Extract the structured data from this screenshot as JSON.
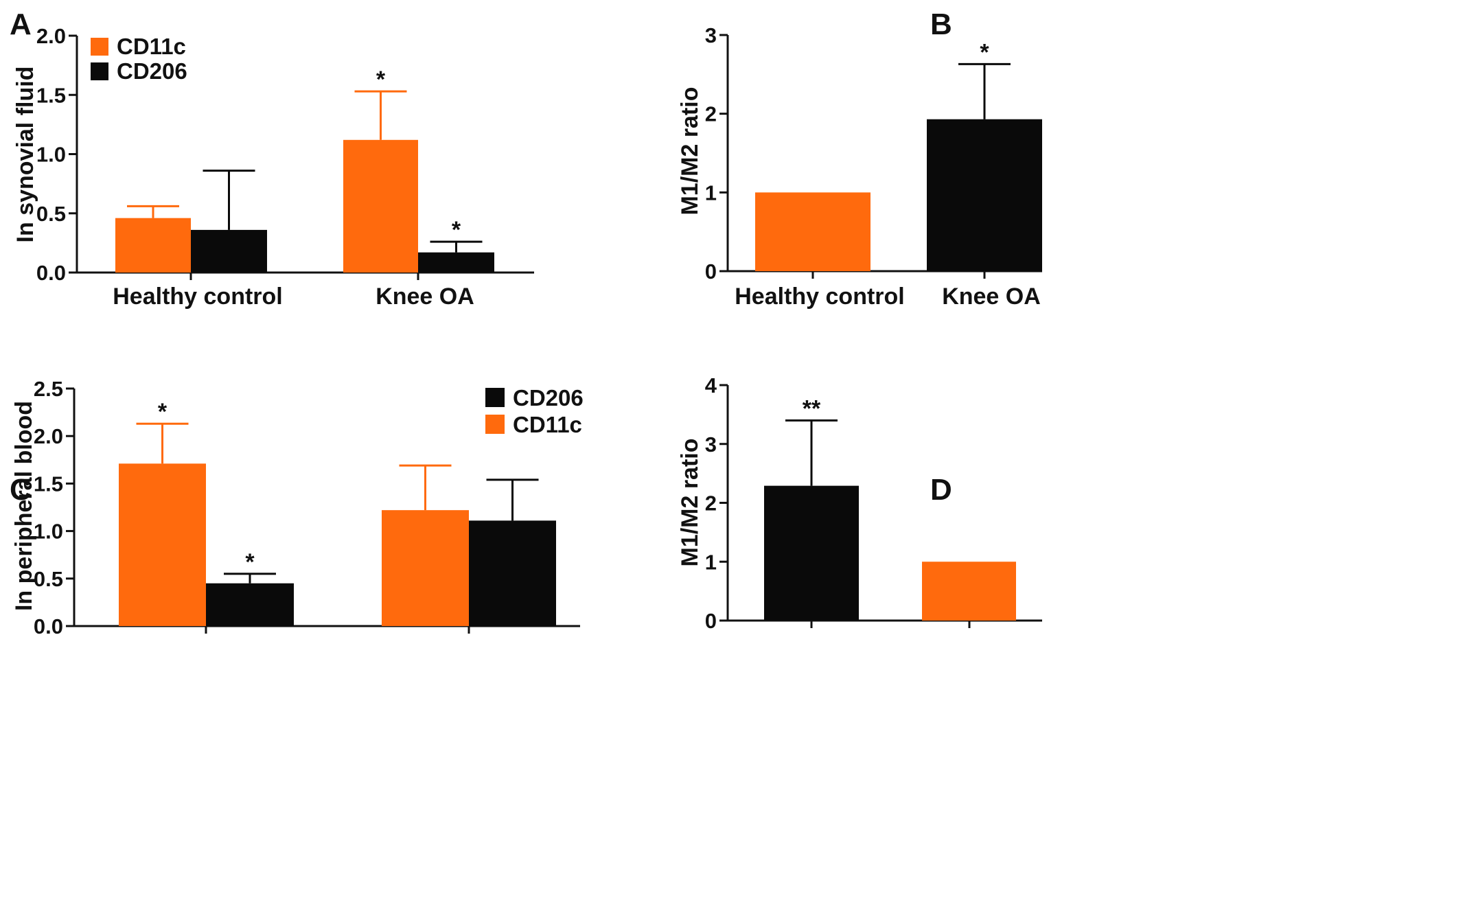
{
  "colors": {
    "orange": "#FF6A0D",
    "black": "#0A0A0A",
    "axis": "#111111"
  },
  "panel_letters": {
    "a": "A",
    "b": "B",
    "c": "C",
    "d": "D"
  },
  "chart_data": [
    {
      "id": "A",
      "type": "bar",
      "ylabel": "In synovial fluid",
      "xlabel": "",
      "ylim": [
        0,
        2.0
      ],
      "yticks": [
        "0.0",
        "0.5",
        "1.0",
        "1.5",
        "2.0"
      ],
      "categories": [
        "Healthy control",
        "Knee OA"
      ],
      "series": [
        {
          "name": "CD11c",
          "color": "#FF6A0D",
          "values": [
            0.46,
            1.12
          ],
          "errors": [
            0.1,
            0.41
          ],
          "significance": [
            "",
            "*"
          ]
        },
        {
          "name": "CD206",
          "color": "#0A0A0A",
          "values": [
            0.36,
            0.17
          ],
          "errors": [
            0.5,
            0.09
          ],
          "significance": [
            "",
            "*"
          ]
        }
      ],
      "legend": [
        {
          "label": "CD11c",
          "color": "#FF6A0D"
        },
        {
          "label": "CD206",
          "color": "#0A0A0A"
        }
      ],
      "legend_position": "top-left"
    },
    {
      "id": "B",
      "type": "bar",
      "ylabel": "M1/M2 ratio",
      "xlabel": "",
      "ylim": [
        0,
        3
      ],
      "yticks": [
        "0",
        "1",
        "2",
        "3"
      ],
      "categories": [
        "Healthy control",
        "Knee OA"
      ],
      "series": [
        {
          "name": "M1/M2 ratio",
          "colors": [
            "#FF6A0D",
            "#0A0A0A"
          ],
          "values": [
            1.0,
            1.93
          ],
          "errors": [
            0,
            0.7
          ],
          "significance": [
            "",
            "*"
          ]
        }
      ]
    },
    {
      "id": "C",
      "type": "bar",
      "ylabel": "In peripheral blood",
      "xlabel": "",
      "ylim": [
        0,
        2.5
      ],
      "yticks": [
        "0.0",
        "0.5",
        "1.0",
        "1.5",
        "2.0",
        "2.5"
      ],
      "categories": [
        "",
        ""
      ],
      "series": [
        {
          "name": "CD11c",
          "color": "#FF6A0D",
          "values": [
            1.71,
            1.22
          ],
          "errors": [
            0.42,
            0.47
          ],
          "significance": [
            "*",
            ""
          ]
        },
        {
          "name": "CD206",
          "color": "#0A0A0A",
          "values": [
            0.45,
            1.11
          ],
          "errors": [
            0.1,
            0.43
          ],
          "significance": [
            "*",
            ""
          ]
        }
      ],
      "legend": [
        {
          "label": "CD206",
          "color": "#0A0A0A"
        },
        {
          "label": "CD11c",
          "color": "#FF6A0D"
        }
      ],
      "legend_position": "top-right"
    },
    {
      "id": "D",
      "type": "bar",
      "ylabel": "M1/M2 ratio",
      "xlabel": "",
      "ylim": [
        0,
        4
      ],
      "yticks": [
        "0",
        "1",
        "2",
        "3",
        "4"
      ],
      "categories": [
        "",
        ""
      ],
      "series": [
        {
          "name": "M1/M2 ratio",
          "colors": [
            "#0A0A0A",
            "#FF6A0D"
          ],
          "values": [
            2.29,
            1.0
          ],
          "errors": [
            1.11,
            0
          ],
          "significance": [
            "**",
            ""
          ]
        }
      ]
    }
  ]
}
